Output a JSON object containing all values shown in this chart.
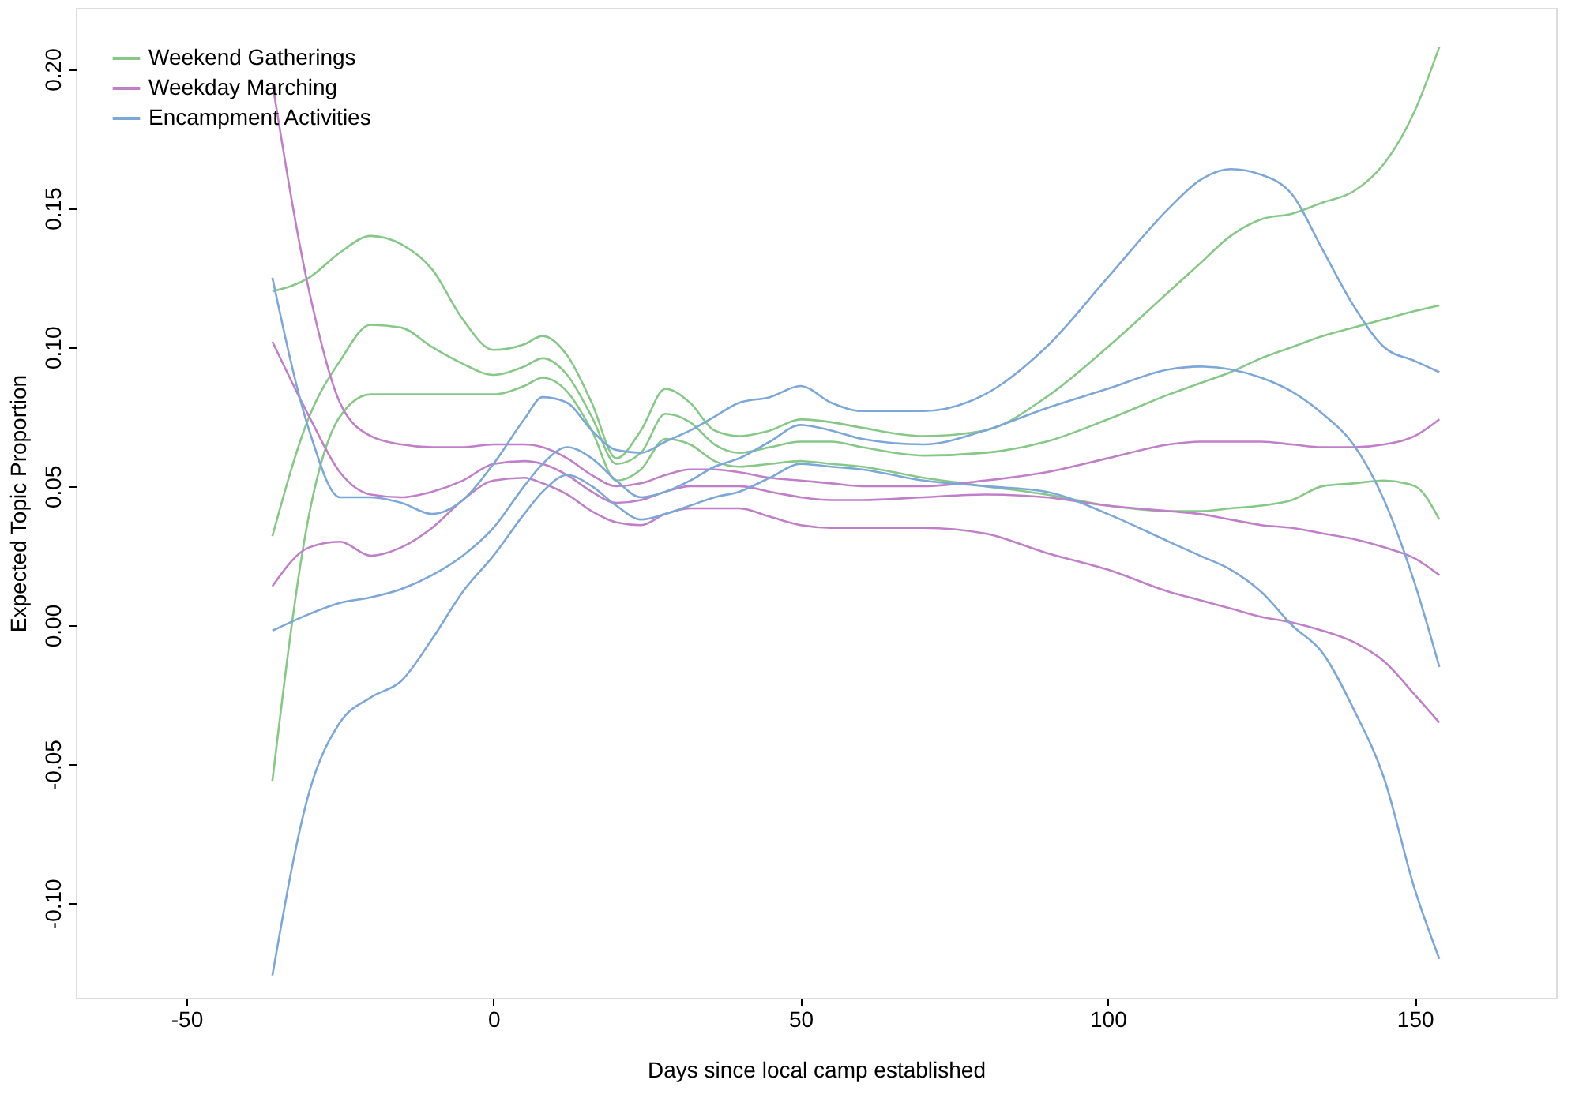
{
  "chart_data": {
    "type": "line",
    "xlabel": "Days since local camp established",
    "ylabel": "Expected Topic Proportion",
    "x": [
      -36,
      -30,
      -25,
      -20,
      -15,
      -10,
      -5,
      0,
      5,
      8,
      12,
      16,
      20,
      24,
      28,
      32,
      36,
      40,
      45,
      50,
      55,
      60,
      70,
      80,
      90,
      100,
      110,
      115,
      120,
      125,
      130,
      135,
      140,
      145,
      150,
      154
    ],
    "series": [
      {
        "name": "Weekend Gatherings",
        "color": "#86c986",
        "values": [
          0.032,
          0.075,
          0.095,
          0.108,
          0.107,
          0.1,
          0.094,
          0.09,
          0.093,
          0.096,
          0.09,
          0.075,
          0.058,
          0.062,
          0.076,
          0.073,
          0.065,
          0.062,
          0.064,
          0.066,
          0.066,
          0.064,
          0.061,
          0.062,
          0.066,
          0.074,
          0.083,
          0.087,
          0.091,
          0.096,
          0.1,
          0.104,
          0.107,
          0.11,
          0.113,
          0.115
        ]
      },
      {
        "color": "#86c986",
        "values": [
          0.12,
          0.125,
          0.134,
          0.14,
          0.137,
          0.128,
          0.11,
          0.099,
          0.101,
          0.104,
          0.097,
          0.08,
          0.06,
          0.07,
          0.085,
          0.08,
          0.07,
          0.068,
          0.07,
          0.074,
          0.073,
          0.071,
          0.068,
          0.07,
          0.082,
          0.1,
          0.12,
          0.13,
          0.14,
          0.146,
          0.148,
          0.152,
          0.156,
          0.166,
          0.185,
          0.208
        ]
      },
      {
        "color": "#86c986",
        "values": [
          -0.056,
          0.04,
          0.075,
          0.083,
          0.083,
          0.083,
          0.083,
          0.083,
          0.086,
          0.089,
          0.084,
          0.07,
          0.052,
          0.056,
          0.067,
          0.065,
          0.059,
          0.057,
          0.058,
          0.059,
          0.058,
          0.057,
          0.053,
          0.05,
          0.047,
          0.043,
          0.041,
          0.041,
          0.042,
          0.043,
          0.045,
          0.05,
          0.051,
          0.052,
          0.05,
          0.038
        ]
      },
      {
        "name": "Weekday Marching",
        "color": "#c17fc9",
        "values": [
          0.102,
          0.075,
          0.055,
          0.047,
          0.046,
          0.048,
          0.052,
          0.058,
          0.059,
          0.058,
          0.054,
          0.048,
          0.044,
          0.045,
          0.048,
          0.05,
          0.05,
          0.05,
          0.048,
          0.046,
          0.045,
          0.045,
          0.046,
          0.047,
          0.046,
          0.043,
          0.041,
          0.04,
          0.038,
          0.036,
          0.035,
          0.033,
          0.031,
          0.028,
          0.024,
          0.018
        ]
      },
      {
        "color": "#c17fc9",
        "values": [
          0.195,
          0.12,
          0.08,
          0.068,
          0.065,
          0.064,
          0.064,
          0.065,
          0.065,
          0.064,
          0.06,
          0.054,
          0.05,
          0.051,
          0.054,
          0.056,
          0.056,
          0.055,
          0.053,
          0.052,
          0.051,
          0.05,
          0.05,
          0.052,
          0.055,
          0.06,
          0.065,
          0.066,
          0.066,
          0.066,
          0.065,
          0.064,
          0.064,
          0.065,
          0.068,
          0.074
        ]
      },
      {
        "color": "#c17fc9",
        "values": [
          0.014,
          0.028,
          0.03,
          0.025,
          0.028,
          0.035,
          0.045,
          0.052,
          0.053,
          0.051,
          0.047,
          0.041,
          0.037,
          0.036,
          0.04,
          0.042,
          0.042,
          0.042,
          0.039,
          0.036,
          0.035,
          0.035,
          0.035,
          0.033,
          0.026,
          0.02,
          0.012,
          0.009,
          0.006,
          0.003,
          0.001,
          -0.002,
          -0.006,
          -0.013,
          -0.025,
          -0.035
        ]
      },
      {
        "name": "Encampment Activities",
        "color": "#7ba7d9",
        "values": [
          -0.002,
          0.004,
          0.008,
          0.01,
          0.013,
          0.018,
          0.025,
          0.035,
          0.05,
          0.058,
          0.064,
          0.06,
          0.052,
          0.046,
          0.048,
          0.052,
          0.057,
          0.06,
          0.066,
          0.072,
          0.07,
          0.067,
          0.065,
          0.07,
          0.078,
          0.085,
          0.092,
          0.093,
          0.092,
          0.089,
          0.084,
          0.076,
          0.065,
          0.045,
          0.015,
          -0.015
        ]
      },
      {
        "color": "#7ba7d9",
        "values": [
          0.125,
          0.07,
          0.046,
          0.046,
          0.044,
          0.04,
          0.045,
          0.058,
          0.074,
          0.082,
          0.08,
          0.07,
          0.063,
          0.062,
          0.066,
          0.07,
          0.075,
          0.08,
          0.082,
          0.086,
          0.08,
          0.077,
          0.077,
          0.083,
          0.1,
          0.125,
          0.15,
          0.16,
          0.164,
          0.162,
          0.155,
          0.135,
          0.115,
          0.1,
          0.095,
          0.091
        ]
      },
      {
        "color": "#7ba7d9",
        "values": [
          -0.126,
          -0.06,
          -0.035,
          -0.026,
          -0.02,
          -0.005,
          0.012,
          0.025,
          0.04,
          0.048,
          0.054,
          0.05,
          0.043,
          0.038,
          0.04,
          0.043,
          0.046,
          0.048,
          0.053,
          0.058,
          0.057,
          0.056,
          0.052,
          0.05,
          0.048,
          0.04,
          0.03,
          0.025,
          0.02,
          0.012,
          0.0,
          -0.01,
          -0.03,
          -0.055,
          -0.095,
          -0.12
        ]
      }
    ],
    "xlim": [
      -68,
      173
    ],
    "ylim": [
      -0.134,
      0.222
    ],
    "xticks": [
      -50,
      0,
      50,
      100,
      150
    ],
    "yticks": [
      {
        "value": -0.1,
        "label": "-0.10"
      },
      {
        "value": -0.05,
        "label": "-0.05"
      },
      {
        "value": 0,
        "label": "0.00"
      },
      {
        "value": 0.05,
        "label": "0.05"
      },
      {
        "value": 0.1,
        "label": "0.10"
      },
      {
        "value": 0.15,
        "label": "0.15"
      },
      {
        "value": 0.2,
        "label": "0.20"
      }
    ],
    "legend": "top left",
    "grid": false,
    "marker": "none",
    "line_style": "solid"
  }
}
